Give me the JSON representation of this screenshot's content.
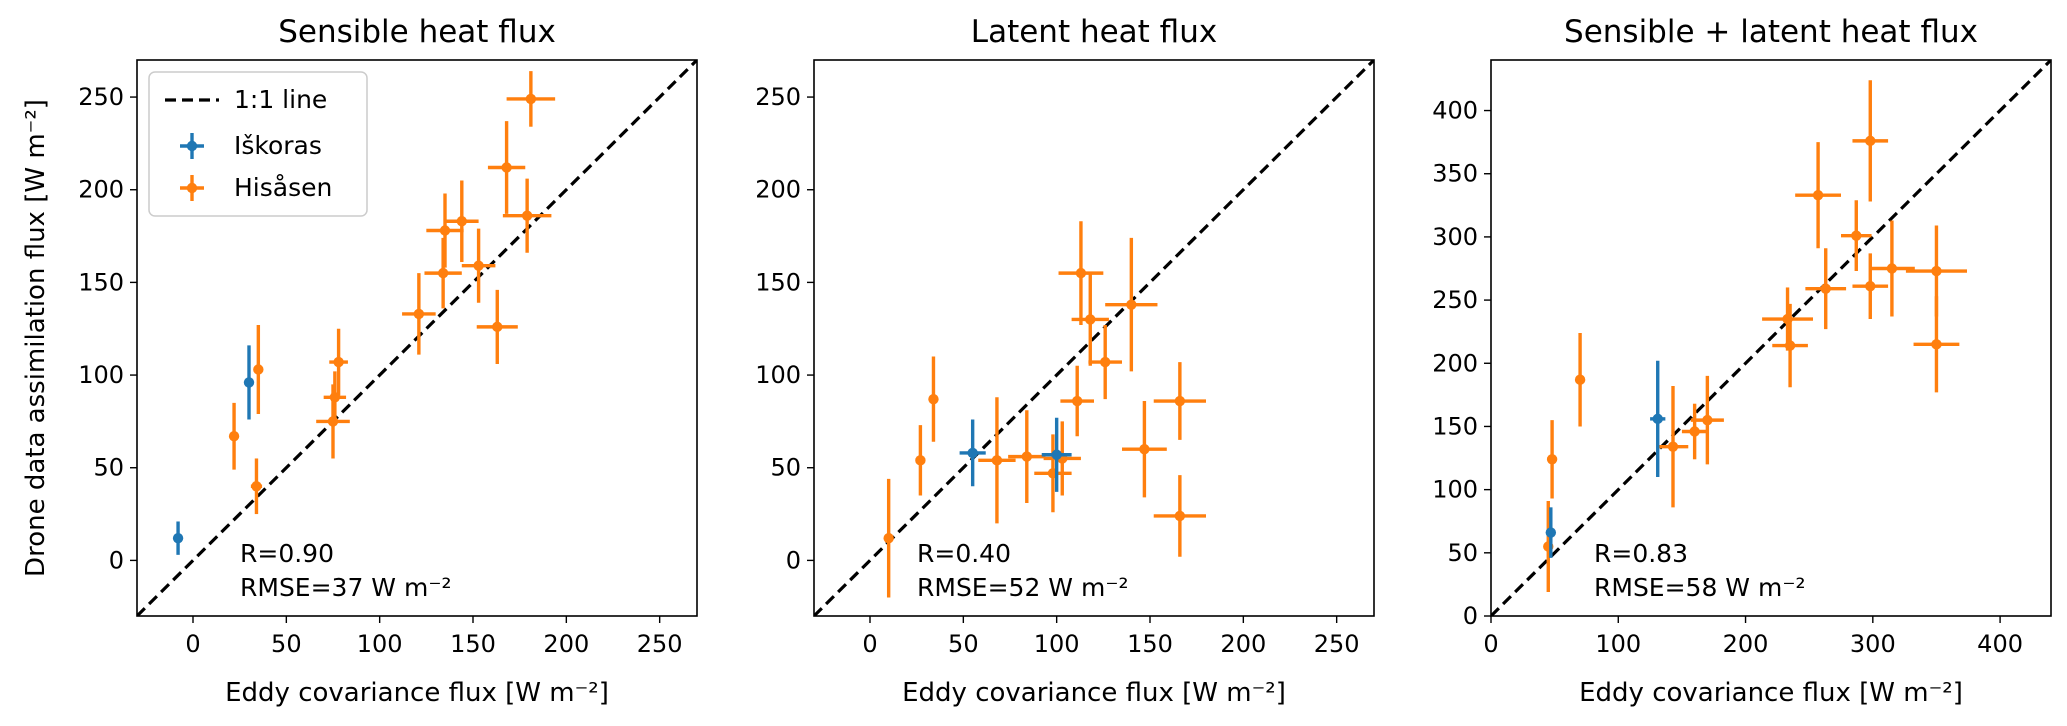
{
  "legend": {
    "line_label": "1:1 line",
    "series": [
      {
        "name": "Iškoras",
        "color": "#1f77b4"
      },
      {
        "name": "Hisåsen",
        "color": "#ff7f0e"
      }
    ]
  },
  "chart_data": [
    {
      "type": "scatter",
      "title": "Sensible heat flux",
      "xlabel": "Eddy covariance flux [W m⁻²]",
      "ylabel": "Drone data assimilation flux [W m⁻²]",
      "xlim": [
        -30,
        270
      ],
      "ylim": [
        -30,
        270
      ],
      "xticks": [
        0,
        50,
        100,
        150,
        200,
        250
      ],
      "yticks": [
        0,
        50,
        100,
        150,
        200,
        250
      ],
      "stats": {
        "r": "R=0.90",
        "rmse": "RMSE=37 W m⁻²"
      },
      "series": [
        {
          "name": "Iškoras",
          "color": "#1f77b4",
          "points": [
            {
              "x": -8,
              "y": 12,
              "xerr": 0,
              "yerr": 9
            },
            {
              "x": 30,
              "y": 96,
              "xerr": 2,
              "yerr": 20
            }
          ]
        },
        {
          "name": "Hisåsen",
          "color": "#ff7f0e",
          "points": [
            {
              "x": 22,
              "y": 67,
              "xerr": 0,
              "yerr": 18
            },
            {
              "x": 35,
              "y": 103,
              "xerr": 0,
              "yerr": 24
            },
            {
              "x": 34,
              "y": 40,
              "xerr": 3,
              "yerr": 15
            },
            {
              "x": 76,
              "y": 88,
              "xerr": 6,
              "yerr": 14
            },
            {
              "x": 78,
              "y": 107,
              "xerr": 5,
              "yerr": 18
            },
            {
              "x": 75,
              "y": 75,
              "xerr": 9,
              "yerr": 20
            },
            {
              "x": 121,
              "y": 133,
              "xerr": 9,
              "yerr": 22
            },
            {
              "x": 134,
              "y": 155,
              "xerr": 10,
              "yerr": 19
            },
            {
              "x": 135,
              "y": 178,
              "xerr": 10,
              "yerr": 20
            },
            {
              "x": 144,
              "y": 183,
              "xerr": 9,
              "yerr": 22
            },
            {
              "x": 153,
              "y": 159,
              "xerr": 9,
              "yerr": 20
            },
            {
              "x": 163,
              "y": 126,
              "xerr": 11,
              "yerr": 20
            },
            {
              "x": 168,
              "y": 212,
              "xerr": 10,
              "yerr": 25
            },
            {
              "x": 179,
              "y": 186,
              "xerr": 13,
              "yerr": 20
            },
            {
              "x": 181,
              "y": 249,
              "xerr": 13,
              "yerr": 15
            }
          ]
        }
      ]
    },
    {
      "type": "scatter",
      "title": "Latent heat flux",
      "xlabel": "Eddy covariance flux [W m⁻²]",
      "ylabel": "",
      "xlim": [
        -30,
        270
      ],
      "ylim": [
        -30,
        270
      ],
      "xticks": [
        0,
        50,
        100,
        150,
        200,
        250
      ],
      "yticks": [
        0,
        50,
        100,
        150,
        200,
        250
      ],
      "stats": {
        "r": "R=0.40",
        "rmse": "RMSE=52 W m⁻²"
      },
      "series": [
        {
          "name": "Iškoras",
          "color": "#1f77b4",
          "points": [
            {
              "x": 55,
              "y": 58,
              "xerr": 7,
              "yerr": 18
            },
            {
              "x": 100,
              "y": 57,
              "xerr": 8,
              "yerr": 20
            }
          ]
        },
        {
          "name": "Hisåsen",
          "color": "#ff7f0e",
          "points": [
            {
              "x": 10,
              "y": 12,
              "xerr": 0,
              "yerr": 32
            },
            {
              "x": 27,
              "y": 54,
              "xerr": 0,
              "yerr": 19
            },
            {
              "x": 34,
              "y": 87,
              "xerr": 0,
              "yerr": 23
            },
            {
              "x": 68,
              "y": 54,
              "xerr": 10,
              "yerr": 34
            },
            {
              "x": 84,
              "y": 56,
              "xerr": 10,
              "yerr": 25
            },
            {
              "x": 98,
              "y": 47,
              "xerr": 10,
              "yerr": 21
            },
            {
              "x": 103,
              "y": 55,
              "xerr": 10,
              "yerr": 20
            },
            {
              "x": 111,
              "y": 86,
              "xerr": 9,
              "yerr": 19
            },
            {
              "x": 113,
              "y": 155,
              "xerr": 12,
              "yerr": 28
            },
            {
              "x": 118,
              "y": 130,
              "xerr": 10,
              "yerr": 25
            },
            {
              "x": 126,
              "y": 107,
              "xerr": 9,
              "yerr": 20
            },
            {
              "x": 140,
              "y": 138,
              "xerr": 14,
              "yerr": 36
            },
            {
              "x": 147,
              "y": 60,
              "xerr": 12,
              "yerr": 26
            },
            {
              "x": 166,
              "y": 86,
              "xerr": 14,
              "yerr": 21
            },
            {
              "x": 166,
              "y": 24,
              "xerr": 14,
              "yerr": 22
            }
          ]
        }
      ]
    },
    {
      "type": "scatter",
      "title": "Sensible + latent heat flux",
      "xlabel": "Eddy covariance flux [W m⁻²]",
      "ylabel": "",
      "xlim": [
        0,
        440
      ],
      "ylim": [
        0,
        440
      ],
      "xticks": [
        0,
        100,
        200,
        300,
        400
      ],
      "yticks": [
        0,
        50,
        100,
        150,
        200,
        250,
        300,
        350,
        400
      ],
      "stats": {
        "r": "R=0.83",
        "rmse": "RMSE=58 W m⁻²"
      },
      "series": [
        {
          "name": "Iškoras",
          "color": "#1f77b4",
          "points": [
            {
              "x": 47,
              "y": 66,
              "xerr": 2,
              "yerr": 20
            },
            {
              "x": 131,
              "y": 156,
              "xerr": 6,
              "yerr": 46
            }
          ]
        },
        {
          "name": "Hisåsen",
          "color": "#ff7f0e",
          "points": [
            {
              "x": 45,
              "y": 55,
              "xerr": 0,
              "yerr": 36
            },
            {
              "x": 48,
              "y": 124,
              "xerr": 0,
              "yerr": 31
            },
            {
              "x": 70,
              "y": 187,
              "xerr": 0,
              "yerr": 37
            },
            {
              "x": 143,
              "y": 134,
              "xerr": 12,
              "yerr": 48
            },
            {
              "x": 160,
              "y": 146,
              "xerr": 10,
              "yerr": 22
            },
            {
              "x": 170,
              "y": 155,
              "xerr": 13,
              "yerr": 35
            },
            {
              "x": 233,
              "y": 235,
              "xerr": 20,
              "yerr": 25
            },
            {
              "x": 235,
              "y": 214,
              "xerr": 14,
              "yerr": 33
            },
            {
              "x": 257,
              "y": 333,
              "xerr": 18,
              "yerr": 42
            },
            {
              "x": 263,
              "y": 259,
              "xerr": 16,
              "yerr": 32
            },
            {
              "x": 287,
              "y": 301,
              "xerr": 12,
              "yerr": 28
            },
            {
              "x": 298,
              "y": 376,
              "xerr": 14,
              "yerr": 48
            },
            {
              "x": 298,
              "y": 261,
              "xerr": 14,
              "yerr": 26
            },
            {
              "x": 315,
              "y": 275,
              "xerr": 18,
              "yerr": 38
            },
            {
              "x": 350,
              "y": 273,
              "xerr": 24,
              "yerr": 36
            },
            {
              "x": 350,
              "y": 215,
              "xerr": 18,
              "yerr": 38
            }
          ]
        }
      ]
    }
  ]
}
